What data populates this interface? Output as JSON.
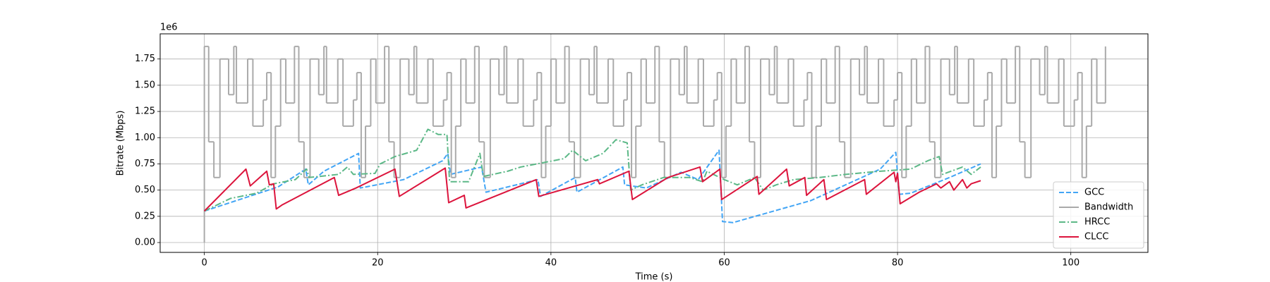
{
  "chart_data": {
    "type": "line",
    "xlabel": "Time (s)",
    "ylabel": "Bitrate (Mbps)",
    "y_offset_label": "1e6",
    "xlim": [
      -5.1,
      108.9
    ],
    "ylim": [
      -0.094,
      1.99
    ],
    "xticks": [
      0,
      20,
      40,
      60,
      80,
      100
    ],
    "yticks": [
      {
        "value": 0,
        "label": "0.00"
      },
      {
        "value": 0.25,
        "label": "0.25"
      },
      {
        "value": 0.5,
        "label": "0.50"
      },
      {
        "value": 0.75,
        "label": "0.75"
      },
      {
        "value": 1,
        "label": "1.00"
      },
      {
        "value": 1.25,
        "label": "1.25"
      },
      {
        "value": 1.5,
        "label": "1.50"
      },
      {
        "value": 1.75,
        "label": "1.75"
      }
    ],
    "grid": true,
    "legend": "lower right",
    "series": [
      {
        "name": "GCC",
        "color": "#42a5f5",
        "linestyle": "dashed",
        "x": [
          0,
          8.5,
          11.7,
          12.0,
          13.8,
          17.8,
          18.0,
          23.0,
          27.5,
          28.1,
          28.4,
          32.0,
          32.5,
          38.5,
          38.8,
          42.8,
          43.0,
          48.3,
          48.5,
          51.0,
          55.0,
          57.0,
          59.4,
          59.8,
          61.0,
          70.0,
          78.0,
          79.8,
          80.2,
          81.5,
          86.0,
          89.6
        ],
        "values": [
          0.3,
          0.53,
          0.7,
          0.55,
          0.68,
          0.85,
          0.52,
          0.6,
          0.78,
          0.85,
          0.65,
          0.72,
          0.48,
          0.6,
          0.44,
          0.62,
          0.48,
          0.72,
          0.55,
          0.52,
          0.67,
          0.6,
          0.88,
          0.2,
          0.19,
          0.4,
          0.7,
          0.86,
          0.46,
          0.47,
          0.62,
          0.75
        ]
      },
      {
        "name": "Bandwidth",
        "color": "#aaaaaa",
        "linestyle": "solid",
        "drawstyle": "steps-post",
        "x": [
          0,
          0,
          0.5,
          1.1,
          1.8,
          2.8,
          3.4,
          3.7,
          5.0,
          5.6,
          6.8,
          7.2,
          7.7,
          8.2,
          8.8,
          9.4,
          10.4,
          10.9,
          11.5,
          12.2,
          13.2,
          13.8,
          14.1,
          15.4,
          16.0,
          17.2,
          17.6,
          18.1,
          18.6,
          19.2,
          19.8,
          20.8,
          21.3,
          21.9,
          22.6,
          23.6,
          24.2,
          24.5,
          25.8,
          26.4,
          27.6,
          28.0,
          28.5,
          29.0,
          29.6,
          30.2,
          31.2,
          31.7,
          32.3,
          33.0,
          34.0,
          34.6,
          34.9,
          36.2,
          36.8,
          38.0,
          38.4,
          38.9,
          39.4,
          40.0,
          40.6,
          41.6,
          42.1,
          42.7,
          43.4,
          44.4,
          45.0,
          45.3,
          46.6,
          47.2,
          48.4,
          48.8,
          49.3,
          49.8,
          50.4,
          51.0,
          52.0,
          52.5,
          53.1,
          53.8,
          54.8,
          55.4,
          55.7,
          57.0,
          57.6,
          58.8,
          59.2,
          59.7,
          60.2,
          60.8,
          61.4,
          62.4,
          62.9,
          63.5,
          64.2,
          65.2,
          65.8,
          66.1,
          67.4,
          68.0,
          69.2,
          69.6,
          70.1,
          70.6,
          71.2,
          71.8,
          72.8,
          73.3,
          73.9,
          74.6,
          75.6,
          76.2,
          76.5,
          77.8,
          78.4,
          79.6,
          80.0,
          80.5,
          81.0,
          81.6,
          82.2,
          83.2,
          83.7,
          84.3,
          85.0,
          86.0,
          86.6,
          86.9,
          88.2,
          88.8,
          90.0,
          90.4,
          90.9,
          91.4,
          92.0,
          92.6,
          93.6,
          94.1,
          94.7,
          95.4,
          96.4,
          97.0,
          97.3,
          98.6,
          99.2,
          100.4,
          100.8,
          101.3,
          101.8,
          102.4,
          103.0,
          104.0
        ],
        "values": [
          0,
          1.87,
          0.96,
          0.62,
          1.75,
          1.41,
          1.87,
          1.33,
          1.75,
          1.11,
          1.36,
          1.62,
          0.62,
          1.11,
          1.75,
          1.33,
          1.87,
          0.96,
          0.62,
          1.75,
          1.41,
          1.87,
          1.33,
          1.75,
          1.11,
          1.36,
          1.62,
          0.62,
          1.11,
          1.75,
          1.33,
          1.87,
          0.96,
          0.62,
          1.75,
          1.41,
          1.87,
          1.33,
          1.75,
          1.11,
          1.36,
          1.62,
          0.62,
          1.11,
          1.75,
          1.33,
          1.87,
          0.96,
          0.62,
          1.75,
          1.41,
          1.87,
          1.33,
          1.75,
          1.11,
          1.36,
          1.62,
          0.62,
          1.11,
          1.75,
          1.33,
          1.87,
          0.96,
          0.62,
          1.75,
          1.41,
          1.87,
          1.33,
          1.75,
          1.11,
          1.36,
          1.62,
          0.62,
          1.11,
          1.75,
          1.33,
          1.87,
          0.96,
          0.62,
          1.75,
          1.41,
          1.87,
          1.33,
          1.75,
          1.11,
          1.36,
          1.62,
          0.62,
          1.11,
          1.75,
          1.33,
          1.87,
          0.96,
          0.62,
          1.75,
          1.41,
          1.87,
          1.33,
          1.75,
          1.11,
          1.36,
          1.62,
          0.62,
          1.11,
          1.75,
          1.33,
          1.87,
          0.96,
          0.62,
          1.75,
          1.41,
          1.87,
          1.33,
          1.75,
          1.11,
          1.36,
          1.62,
          0.62,
          1.11,
          1.75,
          1.33,
          1.87,
          0.96,
          0.62,
          1.75,
          1.41,
          1.87,
          1.33,
          1.75,
          1.11,
          1.36,
          1.62,
          0.62,
          1.11,
          1.75,
          1.33,
          1.87,
          0.96,
          0.62,
          1.75,
          1.41,
          1.87,
          1.33,
          1.75,
          1.11,
          1.36,
          1.62,
          0.62,
          1.11,
          1.75,
          1.33,
          1.87
        ]
      },
      {
        "name": "HRCC",
        "color": "#5cb887",
        "linestyle": "dashdot",
        "x": [
          0,
          3,
          6,
          8,
          10.5,
          11.8,
          12.1,
          15.5,
          16.5,
          17.2,
          19.7,
          20.3,
          22,
          24.5,
          25.8,
          27,
          28,
          28.3,
          30.5,
          31.8,
          32.2,
          35,
          36.5,
          39,
          41.5,
          42.5,
          44,
          46,
          47.5,
          48.8,
          49.2,
          50.5,
          53,
          56,
          57.5,
          58,
          60,
          61.5,
          63.5,
          64.5,
          66,
          68,
          71,
          74,
          78,
          81.5,
          83.5,
          84.8,
          85.2,
          87.5,
          88.5,
          89.6
        ],
        "values": [
          0.3,
          0.42,
          0.47,
          0.56,
          0.6,
          0.7,
          0.62,
          0.65,
          0.72,
          0.65,
          0.66,
          0.75,
          0.82,
          0.88,
          1.08,
          1.03,
          1.03,
          0.58,
          0.58,
          0.85,
          0.63,
          0.68,
          0.72,
          0.76,
          0.8,
          0.88,
          0.78,
          0.85,
          0.98,
          0.95,
          0.5,
          0.55,
          0.62,
          0.62,
          0.58,
          0.68,
          0.6,
          0.55,
          0.62,
          0.5,
          0.55,
          0.6,
          0.62,
          0.65,
          0.68,
          0.7,
          0.78,
          0.82,
          0.65,
          0.72,
          0.65,
          0.72
        ]
      },
      {
        "name": "CLCC",
        "color": "#dc143c",
        "linestyle": "solid",
        "x": [
          0,
          4.8,
          5.3,
          7.2,
          7.5,
          8.0,
          8.3,
          9.0,
          15.0,
          15.5,
          17.5,
          22.0,
          22.5,
          27.8,
          28.2,
          30.0,
          30.2,
          38.3,
          38.6,
          45.4,
          45.6,
          49.0,
          49.4,
          53.5,
          57.2,
          57.5,
          59.5,
          59.7,
          63.8,
          64.0,
          67.2,
          67.5,
          69.3,
          69.5,
          71.5,
          71.8,
          76.2,
          76.4,
          79.6,
          79.8,
          80.0,
          80.3,
          82.5,
          84.5,
          85.0,
          86.0,
          86.5,
          87.5,
          88.0,
          88.5,
          89.6
        ],
        "values": [
          0.3,
          0.7,
          0.54,
          0.68,
          0.55,
          0.56,
          0.32,
          0.36,
          0.62,
          0.45,
          0.52,
          0.7,
          0.44,
          0.71,
          0.38,
          0.45,
          0.33,
          0.6,
          0.44,
          0.6,
          0.56,
          0.68,
          0.41,
          0.62,
          0.72,
          0.58,
          0.7,
          0.41,
          0.63,
          0.46,
          0.7,
          0.54,
          0.62,
          0.45,
          0.6,
          0.41,
          0.6,
          0.46,
          0.67,
          0.58,
          0.66,
          0.37,
          0.48,
          0.56,
          0.52,
          0.58,
          0.5,
          0.6,
          0.52,
          0.56,
          0.59
        ]
      }
    ]
  }
}
